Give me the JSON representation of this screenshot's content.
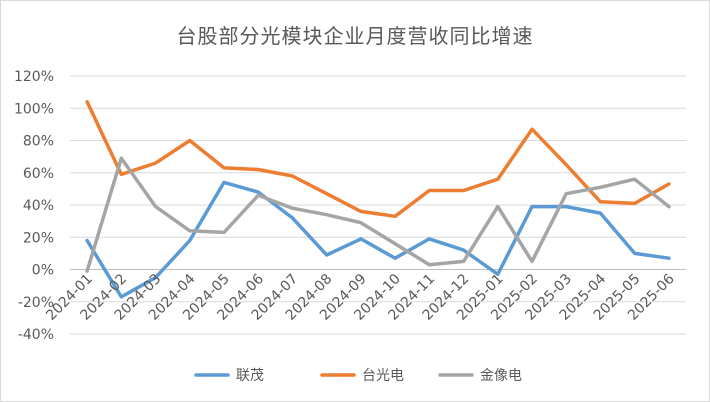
{
  "chart_data": {
    "type": "line",
    "title": "台股部分光模块企业月度营收同比增速",
    "xlabel": "",
    "ylabel": "",
    "categories": [
      "2024-01",
      "2024-02",
      "2024-03",
      "2024-04",
      "2024-05",
      "2024-06",
      "2024-07",
      "2024-08",
      "2024-09",
      "2024-10",
      "2024-11",
      "2024-12",
      "2025-01",
      "2025-02",
      "2025-03",
      "2025-04",
      "2025-05",
      "2025-06"
    ],
    "x_tick_labels": [
      "2024-01",
      "2024-02",
      "2024-03",
      "2024-04",
      "2024-05",
      "2024-06",
      "2024-07",
      "2024-08",
      "2024-09",
      "2024-10",
      "2024-11",
      "2024-12",
      "2025-01",
      "2025-02",
      "2025-03",
      "2025-04",
      "2025-05",
      "2025-06"
    ],
    "ylim": [
      -40,
      120
    ],
    "y_ticks": [
      -40,
      -20,
      0,
      20,
      40,
      60,
      80,
      100,
      120
    ],
    "y_tick_labels": [
      "-40%",
      "-20%",
      "0%",
      "20%",
      "40%",
      "60%",
      "80%",
      "100%",
      "120%"
    ],
    "grid": "horizontal",
    "legend_position": "bottom",
    "series": [
      {
        "name": "联茂",
        "color": "#5B9BD5",
        "values": [
          18,
          -17,
          -5,
          18,
          54,
          48,
          32,
          9,
          19,
          7,
          19,
          12,
          -3,
          39,
          39,
          35,
          10,
          7
        ]
      },
      {
        "name": "台光电",
        "color": "#ED7D31",
        "values": [
          104,
          59,
          66,
          80,
          63,
          62,
          58,
          47,
          36,
          33,
          49,
          49,
          56,
          87,
          65,
          42,
          41,
          53
        ]
      },
      {
        "name": "金像电",
        "color": "#A5A5A5",
        "values": [
          -1,
          69,
          39,
          24,
          23,
          46,
          38,
          34,
          29,
          16,
          3,
          5,
          39,
          5,
          47,
          51,
          56,
          39
        ]
      }
    ]
  }
}
